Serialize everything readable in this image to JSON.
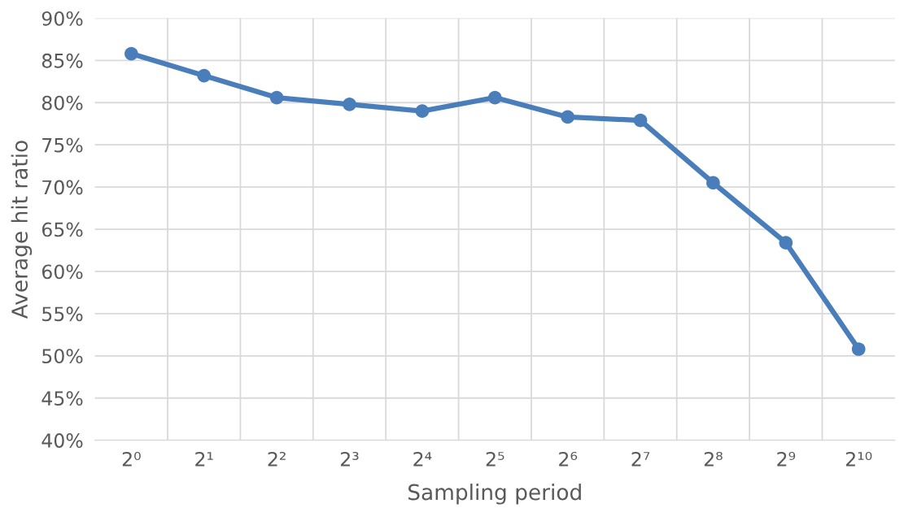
{
  "chart_data": {
    "type": "line",
    "xlabel": "Sampling period",
    "ylabel": "Average hit ratio",
    "categories": [
      "2⁰",
      "2¹",
      "2²",
      "2³",
      "2⁴",
      "2⁵",
      "2⁶",
      "2⁷",
      "2⁸",
      "2⁹",
      "2¹⁰"
    ],
    "series": [
      {
        "color": "#4a7ebb",
        "values": [
          85.8,
          83.2,
          80.6,
          79.8,
          79.0,
          80.6,
          78.3,
          77.9,
          70.5,
          63.4,
          50.8
        ]
      }
    ],
    "ylim": [
      40,
      90
    ],
    "yticks": [
      {
        "value": 40,
        "label": "40%"
      },
      {
        "value": 45,
        "label": "45%"
      },
      {
        "value": 50,
        "label": "50%"
      },
      {
        "value": 55,
        "label": "55%"
      },
      {
        "value": 60,
        "label": "60%"
      },
      {
        "value": 65,
        "label": "65%"
      },
      {
        "value": 70,
        "label": "70%"
      },
      {
        "value": 75,
        "label": "75%"
      },
      {
        "value": 80,
        "label": "80%"
      },
      {
        "value": 85,
        "label": "85%"
      },
      {
        "value": 90,
        "label": "90%"
      }
    ],
    "grid": true,
    "marker": "circle",
    "line_style": "solid"
  }
}
